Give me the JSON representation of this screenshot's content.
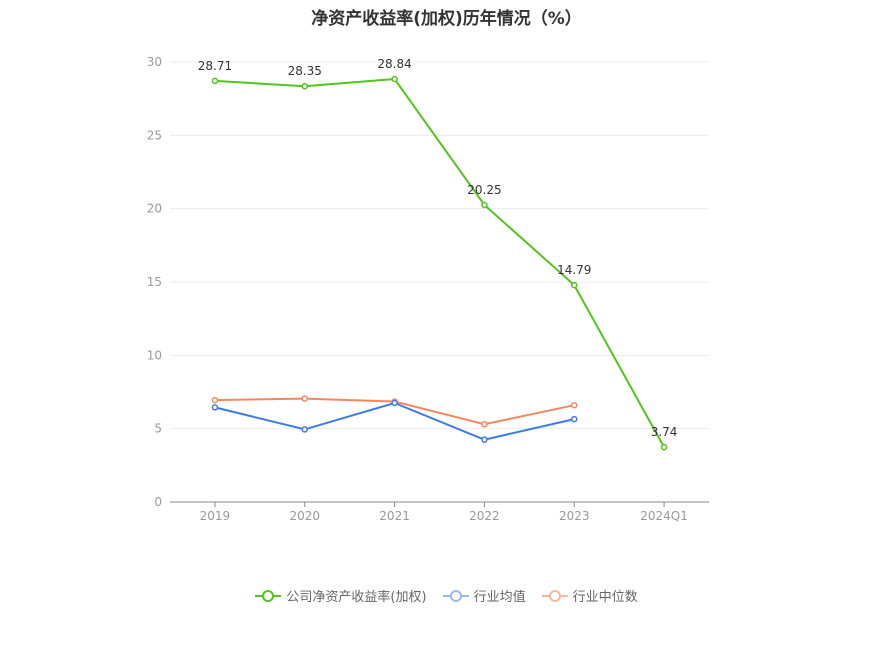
{
  "chart_data": {
    "type": "line",
    "title": "净资产收益率(加权)历年情况（%）",
    "categories": [
      "2019",
      "2020",
      "2021",
      "2022",
      "2023",
      "2024Q1"
    ],
    "ylim": [
      0,
      30
    ],
    "yticks": [
      "0",
      "5",
      "10",
      "15",
      "20",
      "25",
      "30"
    ],
    "grid": true,
    "legend_position": "bottom",
    "series": [
      {
        "name": "公司净资产收益率(加权)",
        "color": "#52c41a",
        "values": [
          28.71,
          28.35,
          28.84,
          20.25,
          14.79,
          3.74
        ],
        "labels": [
          "28.71",
          "28.35",
          "28.84",
          "20.25",
          "14.79",
          "3.74"
        ]
      },
      {
        "name": "行业均值",
        "color": "#3c7be6",
        "values": [
          6.45,
          4.95,
          6.75,
          4.25,
          5.65,
          null
        ]
      },
      {
        "name": "行业中位数",
        "color": "#f5875d",
        "values": [
          6.95,
          7.05,
          6.85,
          5.3,
          6.6,
          null
        ]
      }
    ]
  }
}
